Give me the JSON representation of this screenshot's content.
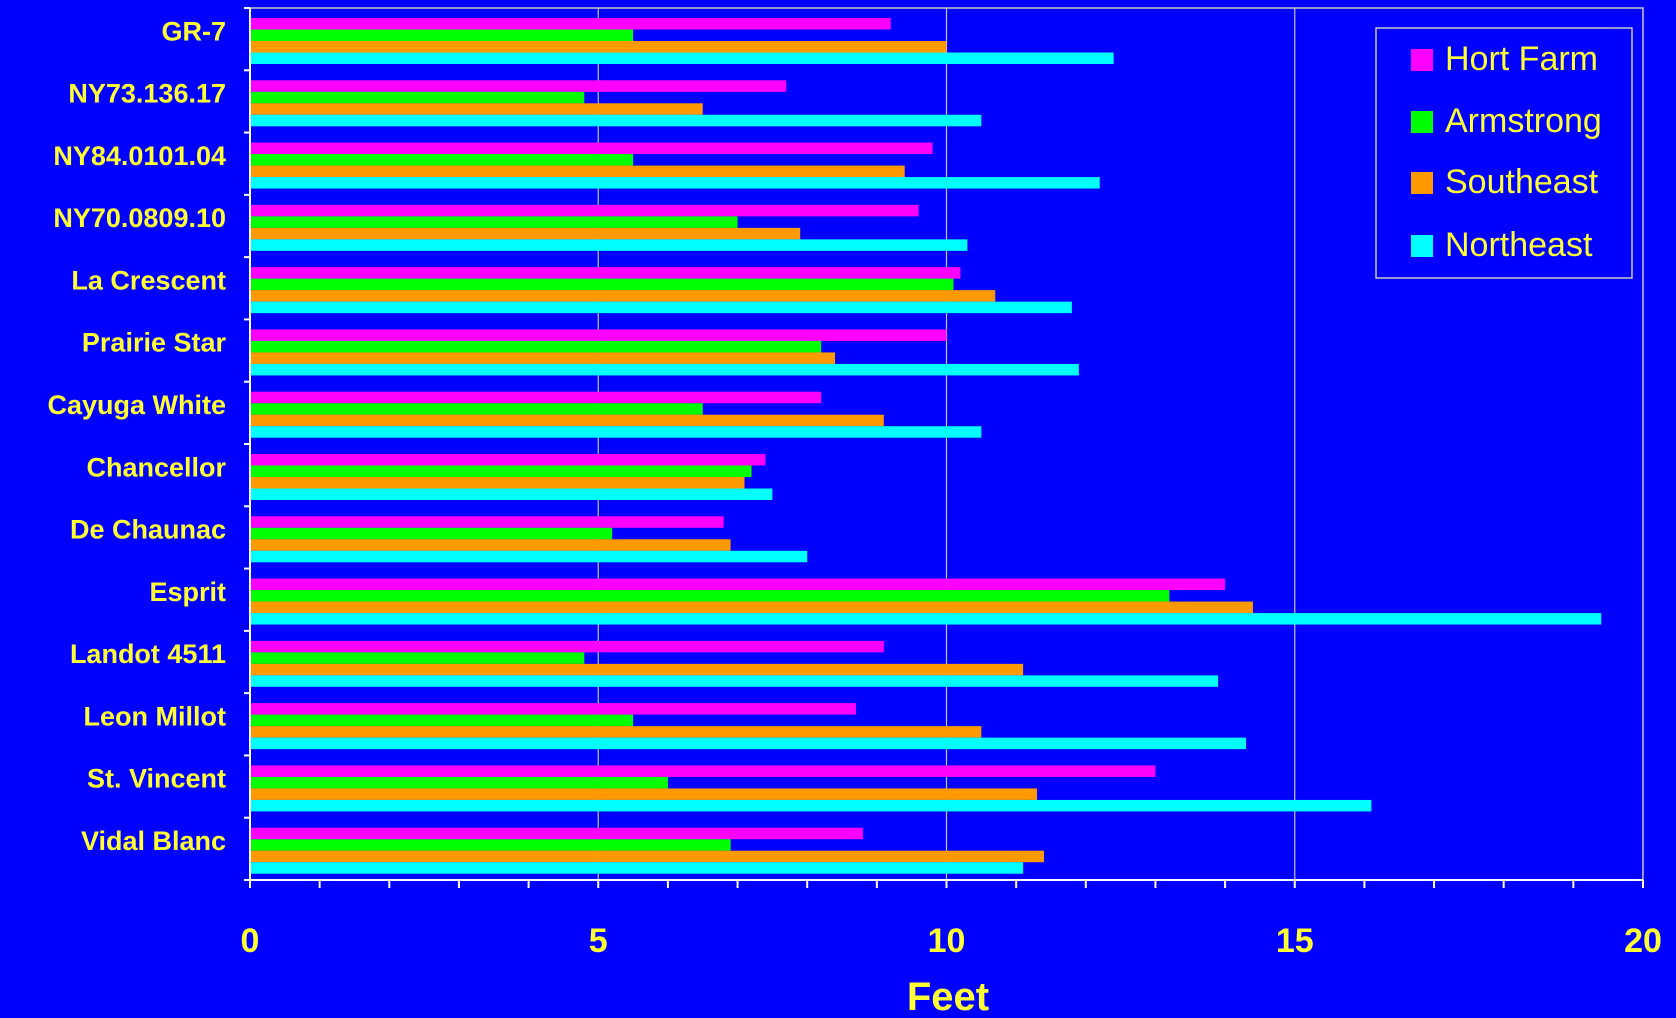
{
  "chart_data": {
    "type": "bar",
    "orientation": "horizontal",
    "title": "",
    "xlabel": "Feet",
    "ylabel": "",
    "xlim": [
      0,
      20
    ],
    "x_ticks": [
      "0",
      "5",
      "10",
      "15",
      "20"
    ],
    "grid": true,
    "legend_position": "top-right",
    "colors": {
      "background": "#0000FF",
      "text": "#FFFF33",
      "axis": "#FFFFFF",
      "grid": "#C8C8C8"
    },
    "categories": [
      "GR-7",
      "NY73.136.17",
      "NY84.0101.04",
      "NY70.0809.10",
      "La Crescent",
      "Prairie Star",
      "Cayuga White",
      "Chancellor",
      "De Chaunac",
      "Esprit",
      "Landot 4511",
      "Leon Millot",
      "St. Vincent",
      "Vidal Blanc"
    ],
    "series": [
      {
        "name": "Hort Farm",
        "color": "#FF00FF",
        "values": [
          9.2,
          7.7,
          9.8,
          9.6,
          10.2,
          10.0,
          8.2,
          7.4,
          6.8,
          14.0,
          9.1,
          8.7,
          13.0,
          8.8
        ]
      },
      {
        "name": "Armstrong",
        "color": "#00FF00",
        "values": [
          5.5,
          4.8,
          5.5,
          7.0,
          10.1,
          8.2,
          6.5,
          7.2,
          5.2,
          13.2,
          4.8,
          5.5,
          6.0,
          6.9
        ]
      },
      {
        "name": "Southeast",
        "color": "#FF9900",
        "values": [
          10.0,
          6.5,
          9.4,
          7.9,
          10.7,
          8.4,
          9.1,
          7.1,
          6.9,
          14.4,
          11.1,
          10.5,
          11.3,
          11.4
        ]
      },
      {
        "name": "Northeast",
        "color": "#00FFFF",
        "values": [
          12.4,
          10.5,
          12.2,
          10.3,
          11.8,
          11.9,
          10.5,
          7.5,
          8.0,
          19.4,
          13.9,
          14.3,
          16.1,
          11.1
        ]
      }
    ]
  }
}
